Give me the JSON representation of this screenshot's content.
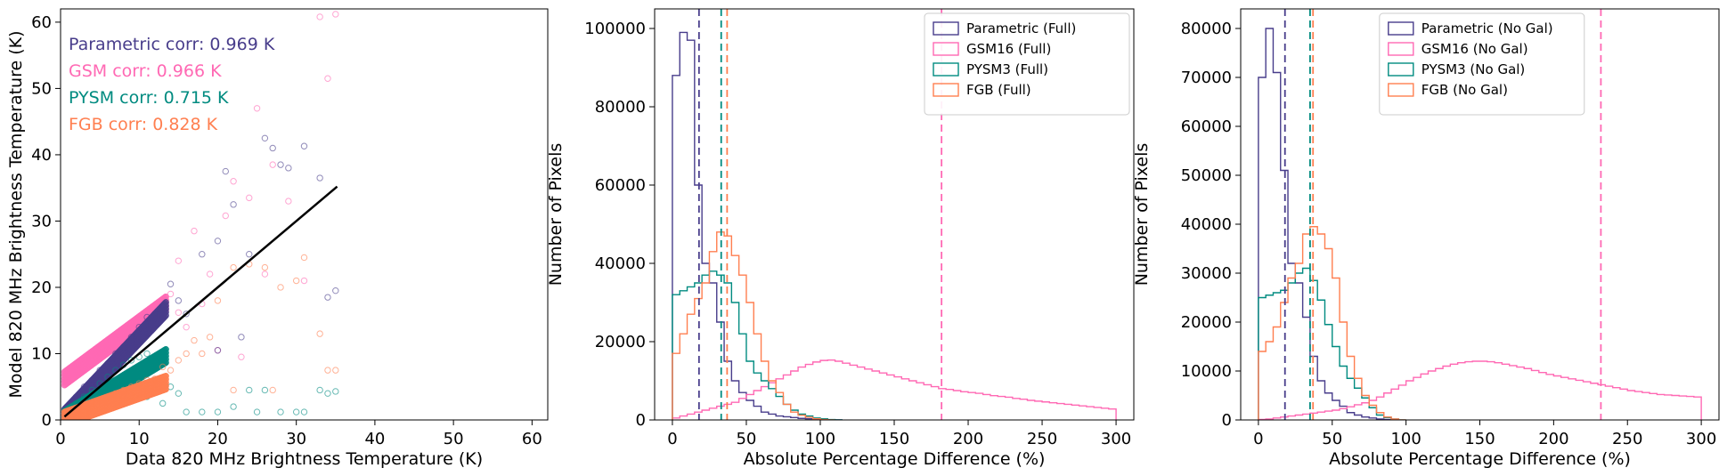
{
  "chart_data": [
    {
      "type": "scatter",
      "xlabel": "Data 820 MHz Brightness Temperature (K)",
      "ylabel": "Model 820 MHz Brightness Temperature (K)",
      "xlim": [
        0,
        62
      ],
      "ylim": [
        0,
        62
      ],
      "xticks": [
        0,
        10,
        20,
        30,
        40,
        50,
        60
      ],
      "yticks": [
        0,
        10,
        20,
        30,
        40,
        50,
        60
      ],
      "annotations": [
        {
          "text": "Parametric corr: 0.969 K",
          "color": "#483d8b"
        },
        {
          "text": "GSM corr: 0.966 K",
          "color": "#ff69b4"
        },
        {
          "text": "PYSM corr: 0.715 K",
          "color": "#008b80"
        },
        {
          "text": "FGB corr: 0.828 K",
          "color": "#ff7f50"
        }
      ],
      "one_to_one_line": {
        "x": [
          0.5,
          35.2
        ],
        "y": [
          0.5,
          35.2
        ],
        "color": "#000000"
      },
      "series": [
        {
          "name": "GSM",
          "color": "#ff69b4",
          "points": [
            [
              1,
              6.8
            ],
            [
              2,
              7.5
            ],
            [
              3,
              8.6
            ],
            [
              4,
              9.1
            ],
            [
              5,
              10.1
            ],
            [
              6,
              10.9
            ],
            [
              7,
              12.3
            ],
            [
              8,
              13.0
            ],
            [
              9,
              14.4
            ],
            [
              10,
              15.3
            ],
            [
              11,
              16.1
            ],
            [
              12,
              16.7
            ],
            [
              13,
              17.1
            ],
            [
              14,
              19.0
            ],
            [
              15,
              16.2
            ],
            [
              17,
              28.5
            ],
            [
              19,
              22.0
            ],
            [
              21,
              30.8
            ],
            [
              22,
              36.0
            ],
            [
              24,
              33.5
            ],
            [
              25,
              47.0
            ],
            [
              27,
              38.5
            ],
            [
              29,
              33.0
            ],
            [
              33,
              60.8
            ],
            [
              34,
              51.5
            ],
            [
              35,
              61.2
            ],
            [
              18,
              17.5
            ],
            [
              20,
              10.5
            ],
            [
              23,
              9.5
            ],
            [
              26,
              22.0
            ],
            [
              31,
              21.0
            ],
            [
              15,
              24.0
            ],
            [
              16,
              14.0
            ]
          ]
        },
        {
          "name": "Parametric",
          "color": "#483d8b",
          "points": [
            [
              1,
              2
            ],
            [
              2,
              3.5
            ],
            [
              3,
              5
            ],
            [
              4,
              6
            ],
            [
              5,
              7.5
            ],
            [
              6,
              8.5
            ],
            [
              7,
              10
            ],
            [
              8,
              11
            ],
            [
              9,
              12.5
            ],
            [
              10,
              14
            ],
            [
              11,
              15.5
            ],
            [
              12,
              16
            ],
            [
              13,
              17.2
            ],
            [
              14,
              20.5
            ],
            [
              15,
              18
            ],
            [
              16,
              16
            ],
            [
              18,
              25
            ],
            [
              20,
              27
            ],
            [
              21,
              37.5
            ],
            [
              22,
              32.5
            ],
            [
              24,
              25
            ],
            [
              26,
              42.5
            ],
            [
              27,
              41
            ],
            [
              28,
              38.5
            ],
            [
              29,
              38.0
            ],
            [
              31,
              41.3
            ],
            [
              33,
              36.5
            ],
            [
              35,
              19.5
            ],
            [
              34,
              18.5
            ],
            [
              23,
              12.5
            ],
            [
              20,
              10.5
            ]
          ]
        },
        {
          "name": "PYSM",
          "color": "#008b80",
          "points": [
            [
              1,
              1.5
            ],
            [
              2,
              2.5
            ],
            [
              3,
              3.5
            ],
            [
              4,
              4.5
            ],
            [
              5,
              5.5
            ],
            [
              6,
              6.5
            ],
            [
              7,
              7.5
            ],
            [
              8,
              8.3
            ],
            [
              9,
              9
            ],
            [
              10,
              9.5
            ],
            [
              11,
              10
            ],
            [
              12,
              9
            ],
            [
              13,
              8.5
            ],
            [
              14,
              5
            ],
            [
              15,
              4
            ],
            [
              16,
              1.2
            ],
            [
              18,
              1.2
            ],
            [
              20,
              1.2
            ],
            [
              22,
              2
            ],
            [
              24,
              4.5
            ],
            [
              25,
              1.2
            ],
            [
              26,
              4.5
            ],
            [
              28,
              1.2
            ],
            [
              30,
              1.2
            ],
            [
              31,
              1.2
            ],
            [
              33,
              4.5
            ],
            [
              34,
              4
            ],
            [
              35,
              4.3
            ],
            [
              11,
              3.5
            ],
            [
              13,
              2.5
            ]
          ]
        },
        {
          "name": "FGB",
          "color": "#ff7f50",
          "points": [
            [
              1,
              0.8
            ],
            [
              2,
              1.5
            ],
            [
              3,
              2
            ],
            [
              4,
              2.5
            ],
            [
              5,
              3
            ],
            [
              6,
              3.5
            ],
            [
              7,
              4
            ],
            [
              8,
              4.5
            ],
            [
              9,
              5
            ],
            [
              10,
              5.5
            ],
            [
              11,
              6
            ],
            [
              12,
              6.2
            ],
            [
              13,
              8
            ],
            [
              14,
              7.5
            ],
            [
              15,
              9
            ],
            [
              16,
              10
            ],
            [
              17,
              12
            ],
            [
              18,
              10
            ],
            [
              19,
              12.5
            ],
            [
              20,
              18
            ],
            [
              22,
              23
            ],
            [
              24,
              23.5
            ],
            [
              26,
              23
            ],
            [
              28,
              20
            ],
            [
              30,
              21
            ],
            [
              31,
              24.5
            ],
            [
              33,
              13
            ],
            [
              34,
              7.5
            ],
            [
              35,
              7.5
            ],
            [
              22,
              4.5
            ],
            [
              27,
              4.5
            ]
          ]
        }
      ]
    },
    {
      "type": "histogram",
      "xlabel": "Absolute Percentage Difference (%)",
      "ylabel": "Number of Pixels",
      "xlim": [
        -12,
        312
      ],
      "ylim": [
        0,
        105000
      ],
      "xticks": [
        0,
        50,
        100,
        150,
        200,
        250,
        300
      ],
      "yticks": [
        0,
        20000,
        40000,
        60000,
        80000,
        100000
      ],
      "legend_position": "top-right",
      "series": [
        {
          "name": "Parametric (Full)",
          "color": "#483d8b",
          "bin_width": 5,
          "start": 0,
          "values": [
            88000,
            99000,
            97000,
            60000,
            40000,
            35000,
            25000,
            15000,
            10000,
            7000,
            5000,
            3500,
            2000,
            1500,
            1000,
            800,
            600,
            400,
            300,
            200,
            100,
            50,
            0
          ]
        },
        {
          "name": "GSM16 (Full)",
          "color": "#ff69b4",
          "bin_width": 5,
          "start": 0,
          "median": 182,
          "values": [
            500,
            1000,
            1500,
            2000,
            2500,
            3000,
            3500,
            4000,
            4500,
            5500,
            6500,
            7500,
            8500,
            9500,
            10500,
            11500,
            12500,
            13500,
            14200,
            14800,
            15200,
            15300,
            15000,
            14500,
            14000,
            13500,
            13000,
            12500,
            12000,
            11500,
            11000,
            10500,
            10000,
            9500,
            9000,
            8500,
            8000,
            7800,
            7500,
            7200,
            7000,
            6800,
            6500,
            6200,
            6000,
            5800,
            5500,
            5300,
            5000,
            4800,
            4600,
            4400,
            4200,
            4000,
            3800,
            3600,
            3400,
            3200,
            3000,
            2800
          ]
        },
        {
          "name": "PYSM3 (Full)",
          "color": "#008b80",
          "bin_width": 5,
          "start": 0,
          "median": 33,
          "values": [
            32000,
            33000,
            34000,
            35000,
            37000,
            38000,
            37000,
            35000,
            30000,
            22000,
            15000,
            12000,
            10000,
            8000,
            6000,
            4000,
            2500,
            1500,
            1000,
            500,
            300,
            100,
            0
          ]
        },
        {
          "name": "FGB (Full)",
          "color": "#ff7f50",
          "bin_width": 5,
          "start": 0,
          "median": 37,
          "values": [
            17000,
            22000,
            27000,
            31000,
            35000,
            43000,
            48000,
            47000,
            42000,
            37000,
            30000,
            22000,
            15000,
            10000,
            7000,
            4000,
            2000,
            1200,
            700,
            300,
            100,
            0
          ]
        }
      ],
      "vlines": [
        {
          "x": 18,
          "color": "#483d8b"
        },
        {
          "x": 33,
          "color": "#008b80"
        },
        {
          "x": 37,
          "color": "#ff7f50"
        },
        {
          "x": 182,
          "color": "#ff69b4"
        }
      ]
    },
    {
      "type": "histogram",
      "xlabel": "Absolute Percentage Difference (%)",
      "ylabel": "Number of Pixels",
      "xlim": [
        -12,
        312
      ],
      "ylim": [
        0,
        84000
      ],
      "xticks": [
        0,
        50,
        100,
        150,
        200,
        250,
        300
      ],
      "yticks": [
        0,
        10000,
        20000,
        30000,
        40000,
        50000,
        60000,
        70000,
        80000
      ],
      "legend_position": "top-center",
      "series": [
        {
          "name": "Parametric (No Gal)",
          "color": "#483d8b",
          "bin_width": 5,
          "start": 0,
          "values": [
            70000,
            80000,
            71000,
            51000,
            32000,
            28000,
            21000,
            13000,
            8000,
            5500,
            4000,
            2800,
            1500,
            1000,
            600,
            400,
            200,
            100,
            0
          ]
        },
        {
          "name": "GSM16 (No Gal)",
          "color": "#ff69b4",
          "bin_width": 5,
          "start": 0,
          "median": 232,
          "values": [
            100,
            200,
            400,
            600,
            800,
            1000,
            1200,
            1400,
            1600,
            1800,
            2000,
            2300,
            2700,
            3100,
            3500,
            4000,
            4700,
            5500,
            6300,
            7100,
            8000,
            8700,
            9400,
            10000,
            10500,
            11000,
            11400,
            11700,
            11900,
            12000,
            12000,
            11900,
            11700,
            11400,
            11100,
            10800,
            10500,
            10100,
            9700,
            9300,
            9000,
            8700,
            8400,
            8100,
            7800,
            7500,
            7200,
            6900,
            6600,
            6300,
            6000,
            5800,
            5600,
            5400,
            5200,
            5100,
            5000,
            4900,
            4800,
            4700
          ]
        },
        {
          "name": "PYSM3 (No Gal)",
          "color": "#008b80",
          "bin_width": 5,
          "start": 0,
          "median": 35,
          "values": [
            25000,
            25500,
            26000,
            26500,
            28000,
            30000,
            31000,
            28500,
            24500,
            19500,
            15000,
            11000,
            8500,
            6500,
            4500,
            2500,
            1000,
            500,
            200,
            0
          ]
        },
        {
          "name": "FGB (No Gal)",
          "color": "#ff7f50",
          "bin_width": 5,
          "start": 0,
          "median": 37,
          "values": [
            14000,
            16000,
            19000,
            24000,
            29000,
            32000,
            38000,
            39500,
            38000,
            35000,
            29000,
            20000,
            13000,
            8500,
            5000,
            3000,
            1500,
            600,
            200,
            0
          ]
        }
      ],
      "vlines": [
        {
          "x": 18,
          "color": "#483d8b"
        },
        {
          "x": 35,
          "color": "#008b80"
        },
        {
          "x": 37,
          "color": "#ff7f50"
        },
        {
          "x": 232,
          "color": "#ff69b4"
        }
      ]
    }
  ]
}
